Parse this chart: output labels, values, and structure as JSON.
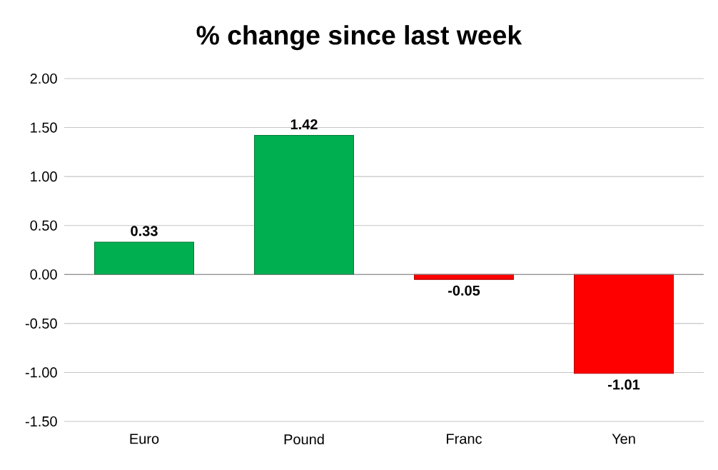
{
  "chart_data": {
    "type": "bar",
    "title": "% change since last week",
    "categories": [
      "Euro",
      "Pound",
      "Franc",
      "Yen"
    ],
    "values": [
      0.33,
      1.42,
      -0.05,
      -1.01
    ],
    "colors": [
      "#00b050",
      "#00b050",
      "#ff0000",
      "#ff0000"
    ],
    "value_labels": [
      "0.33",
      "1.42",
      "-0.05",
      "-1.01"
    ],
    "ylim": [
      -1.5,
      2
    ],
    "yticks": [
      {
        "value": -1.5,
        "label": "-1.50"
      },
      {
        "value": -1,
        "label": "-1.00"
      },
      {
        "value": -0.5,
        "label": "-0.50"
      },
      {
        "value": 0,
        "label": "0.00"
      },
      {
        "value": 0.5,
        "label": "0.50"
      },
      {
        "value": 1,
        "label": "1.00"
      },
      {
        "value": 1.5,
        "label": "1.50"
      },
      {
        "value": 2,
        "label": "2.00"
      }
    ],
    "grid": "y"
  }
}
